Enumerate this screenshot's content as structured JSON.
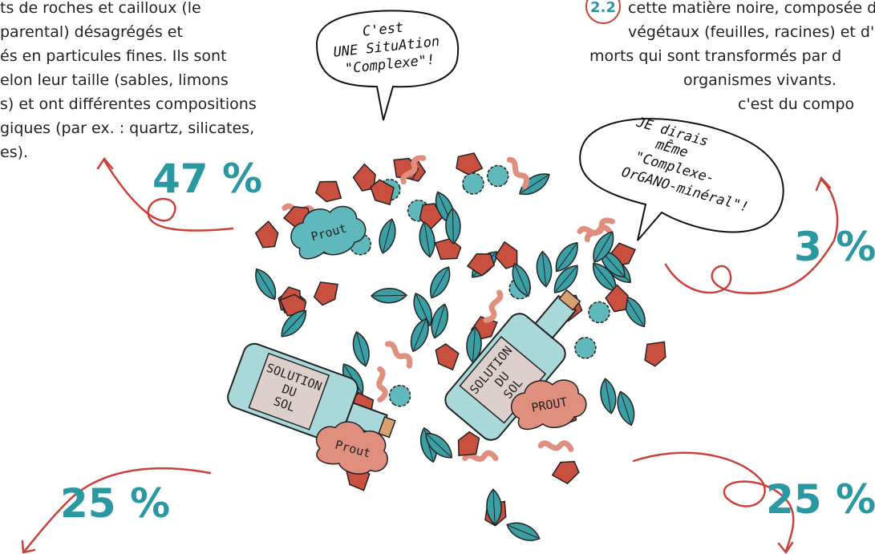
{
  "left_text": {
    "lines": [
      "ts de roches et cailloux (le",
      "parental) désagrégés et",
      "és en particules fines. Ils sont",
      "elon leur taille (sables, limons",
      "s) et ont différentes compositions",
      "giques (par ex. : quartz, silicates,",
      "es)."
    ]
  },
  "right_text": {
    "badge": "2.2",
    "lines": [
      "cette matière noire, composée d",
      "végétaux (feuilles, racines) et d'o",
      "morts qui sont transformés par d",
      "organismes vivants.",
      "c'est du compo"
    ]
  },
  "bubbles": [
    {
      "lines": [
        "C'est",
        "UNE SituAtion",
        "\"Complexe\"!"
      ]
    },
    {
      "lines": [
        "JE dirais",
        "mÊme",
        "\"Complexe-",
        "OrGANO-minéral\"!"
      ]
    }
  ],
  "percentages": [
    "47 %",
    "3 %",
    "25 %",
    "25 %"
  ],
  "bottles": [
    {
      "lines": [
        "SOLUTION",
        "DU",
        "SOL"
      ]
    },
    {
      "lines": [
        "SOLUTION",
        "DU",
        "SOL"
      ]
    }
  ],
  "clouds": [
    "Prout",
    "PROUT",
    "Prout"
  ]
}
